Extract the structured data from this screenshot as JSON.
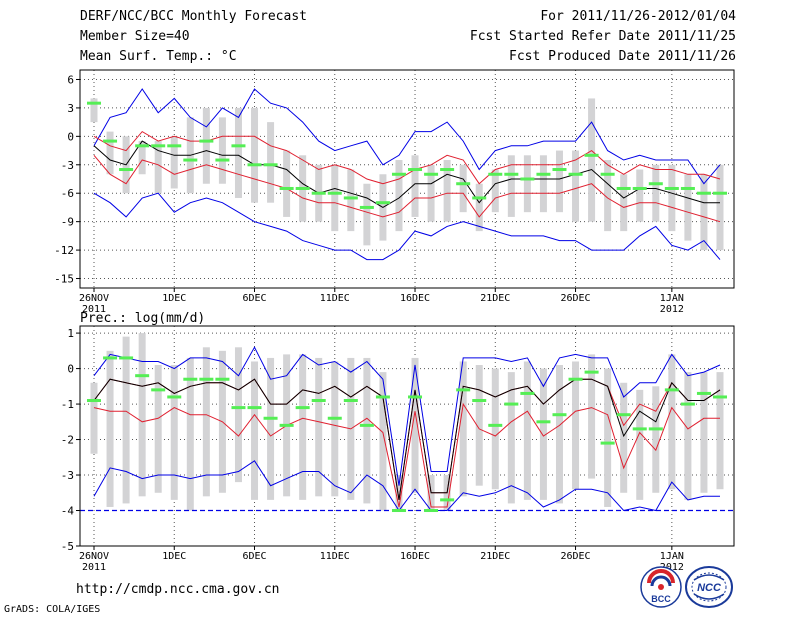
{
  "header": {
    "title": "DERF/NCC/BCC Monthly Forecast",
    "member_size": "Member Size=40",
    "variable": "Mean Surf. Temp.: °C",
    "period": "For 2011/11/26-2012/01/04",
    "started": "Fcst Started Refer Date 2011/11/25",
    "produced": "Fcst Produced Date 2011/11/26"
  },
  "footer": {
    "url": "http://cmdp.ncc.cma.gov.cn",
    "grads": "GrADS: COLA/IGES",
    "logo_bcc": "BCC",
    "logo_ncc": "NCC"
  },
  "colors": {
    "box": "#d3d3d5",
    "median": "#55ee55",
    "mean": "#000000",
    "stdev": "#e02030",
    "extreme": "#0000e6",
    "grid": "#555555"
  },
  "chart_data": [
    {
      "type": "line",
      "title": "Mean Surf. Temp.: °C",
      "xlabel": "",
      "ylabel": "",
      "ylim": [
        -16,
        7
      ],
      "yticks": [
        6,
        3,
        0,
        -3,
        -6,
        -9,
        -12,
        -15
      ],
      "x_start": "2011-11-26",
      "days": 40,
      "xtick_labels": [
        {
          "day": 0,
          "label": "26NOV",
          "year": "2011"
        },
        {
          "day": 5,
          "label": "1DEC"
        },
        {
          "day": 10,
          "label": "6DEC"
        },
        {
          "day": 15,
          "label": "11DEC"
        },
        {
          "day": 20,
          "label": "16DEC"
        },
        {
          "day": 25,
          "label": "21DEC"
        },
        {
          "day": 30,
          "label": "26DEC"
        },
        {
          "day": 36,
          "label": "1JAN",
          "year": "2012"
        }
      ],
      "series": [
        {
          "name": "max",
          "values": [
            -1,
            2,
            2.5,
            5,
            2.5,
            4,
            2,
            1,
            3,
            2,
            5,
            3.5,
            3,
            1.5,
            -0.5,
            -1.5,
            -1,
            -0.5,
            -3,
            -2,
            0.5,
            0.5,
            1.5,
            -0.5,
            -3.5,
            -1.5,
            -1,
            -1,
            -0.5,
            -0.5,
            -0.5,
            1.5,
            -1.5,
            -2.5,
            -2,
            -2.5,
            -2.5,
            -2.5,
            -5,
            -3
          ]
        },
        {
          "name": "plus_std",
          "values": [
            0,
            -1,
            -1.5,
            0.5,
            -0.5,
            0,
            -0.5,
            -0.5,
            0,
            0,
            0,
            -1,
            -1.5,
            -2.5,
            -3.5,
            -3,
            -3.5,
            -4.5,
            -5,
            -4.5,
            -3.5,
            -3,
            -2,
            -2.5,
            -5,
            -3.5,
            -3,
            -3,
            -3,
            -3,
            -2.5,
            -1.5,
            -3,
            -4,
            -3,
            -3.5,
            -3.5,
            -4,
            -4,
            -4.5
          ]
        },
        {
          "name": "mean",
          "values": [
            -1,
            -2.5,
            -3,
            -0.5,
            -1.5,
            -2,
            -2,
            -1.5,
            -2,
            -2,
            -3,
            -3,
            -3.5,
            -5,
            -6,
            -5.5,
            -6,
            -6.5,
            -7.5,
            -6.5,
            -5,
            -5,
            -4,
            -4.5,
            -7,
            -5,
            -4.5,
            -4.5,
            -4.5,
            -4.5,
            -4,
            -3.5,
            -5,
            -6.5,
            -5.5,
            -5.5,
            -6,
            -6.5,
            -7,
            -7
          ]
        },
        {
          "name": "minus_std",
          "values": [
            -2,
            -4,
            -5,
            -2.5,
            -3,
            -4,
            -3.5,
            -3,
            -3.5,
            -4,
            -4.5,
            -5,
            -5.5,
            -6.5,
            -7,
            -7,
            -7.5,
            -8,
            -8.5,
            -8,
            -6.5,
            -6.5,
            -6,
            -6,
            -8.5,
            -6.5,
            -6,
            -6,
            -6,
            -6,
            -5.5,
            -5,
            -6.5,
            -7.5,
            -7,
            -7,
            -7.5,
            -8,
            -8.5,
            -9
          ]
        },
        {
          "name": "min",
          "values": [
            -6,
            -7,
            -8.5,
            -6.5,
            -6,
            -8,
            -7,
            -6.5,
            -7,
            -8,
            -9,
            -9.5,
            -10,
            -11,
            -11.5,
            -12,
            -12,
            -13,
            -13,
            -12,
            -10,
            -10.5,
            -9.5,
            -9,
            -9.5,
            -10,
            -10.5,
            -10.5,
            -10.5,
            -11,
            -11,
            -12,
            -12,
            -12,
            -10.5,
            -9.5,
            -11.5,
            -12,
            -11,
            -13
          ]
        },
        {
          "name": "median",
          "values": [
            3.5,
            -0.5,
            -3.5,
            -1,
            -1,
            -1,
            -2.5,
            -0.5,
            -2.5,
            -1,
            -3,
            -3,
            -5.5,
            -5.5,
            -6,
            -6,
            -6.5,
            -7.5,
            -7,
            -4,
            -3.5,
            -4,
            -3.5,
            -5,
            -6.5,
            -4,
            -4,
            -4.5,
            -4,
            -3.5,
            -4,
            -2,
            -4,
            -5.5,
            -5.5,
            -5,
            -5.5,
            -5.5,
            -6,
            -6
          ]
        },
        {
          "name": "box_high",
          "values": [
            4,
            0.5,
            0,
            -0.5,
            -0.5,
            0,
            2,
            3,
            2,
            3,
            3,
            1.5,
            -1.5,
            -2,
            -3,
            -3,
            -3.5,
            -5,
            -4,
            -2.5,
            -2,
            -3,
            -2.5,
            -3,
            -5,
            -3.5,
            -2,
            -2,
            -2,
            -1.5,
            -1.5,
            4,
            -2.5,
            -4,
            -3.5,
            -3,
            -3,
            -4,
            -4,
            -3
          ]
        },
        {
          "name": "box_low",
          "values": [
            1.5,
            -4,
            -6,
            -4,
            -6,
            -5.5,
            -6,
            -5,
            -5,
            -6.5,
            -7,
            -7,
            -8.5,
            -9,
            -9,
            -10,
            -10,
            -11.5,
            -11,
            -10,
            -8.5,
            -9,
            -9,
            -8,
            -10,
            -8,
            -8.5,
            -8,
            -8,
            -8,
            -9,
            -9,
            -10,
            -10,
            -9,
            -9,
            -10,
            -11,
            -12,
            -12
          ]
        }
      ]
    },
    {
      "type": "line",
      "title": "Prec.: log(mm/d)",
      "xlabel": "",
      "ylabel": "",
      "ylim": [
        -5,
        1.2
      ],
      "yticks": [
        1,
        0,
        -1,
        -2,
        -3,
        -4,
        -5
      ],
      "x_start": "2011-11-26",
      "days": 40,
      "baseline": -4,
      "xtick_labels": [
        {
          "day": 0,
          "label": "26NOV",
          "year": "2011"
        },
        {
          "day": 5,
          "label": "1DEC"
        },
        {
          "day": 10,
          "label": "6DEC"
        },
        {
          "day": 15,
          "label": "11DEC"
        },
        {
          "day": 20,
          "label": "16DEC"
        },
        {
          "day": 25,
          "label": "21DEC"
        },
        {
          "day": 30,
          "label": "26DEC"
        },
        {
          "day": 36,
          "label": "1JAN",
          "year": "2012"
        }
      ],
      "series": [
        {
          "name": "max",
          "values": [
            -0.2,
            0.4,
            0.3,
            0.2,
            0.2,
            0,
            0.3,
            0.3,
            0.2,
            -0.2,
            0.6,
            -0.3,
            -0.2,
            0.4,
            0.1,
            0.2,
            -0.1,
            0.2,
            -0.3,
            -3.3,
            0.1,
            -2.9,
            -2.9,
            0.3,
            0.3,
            0.3,
            0.2,
            0.3,
            -0.5,
            0.3,
            0.4,
            0.3,
            0.3,
            -0.8,
            -0.4,
            -0.4,
            0.4,
            -0.2,
            -0.1,
            0.1
          ]
        },
        {
          "name": "plus_std",
          "values": [
            -0.9,
            -0.3,
            -0.4,
            -0.5,
            -0.4,
            -0.7,
            -0.5,
            -0.4,
            -0.4,
            -0.6,
            -0.3,
            -1,
            -1,
            -0.6,
            -0.7,
            -0.5,
            -0.8,
            -0.5,
            -0.8,
            -3.7,
            -0.6,
            -3.5,
            -3.5,
            -0.5,
            -0.6,
            -0.8,
            -0.6,
            -0.5,
            -1,
            -0.6,
            -0.3,
            -0.3,
            -0.5,
            -1.6,
            -1,
            -1.2,
            -0.4,
            -0.9,
            -0.9,
            -0.6
          ]
        },
        {
          "name": "mean",
          "values": [
            -0.9,
            -0.3,
            -0.4,
            -0.5,
            -0.4,
            -0.7,
            -0.5,
            -0.4,
            -0.4,
            -0.6,
            -0.3,
            -1,
            -1,
            -0.6,
            -0.7,
            -0.5,
            -0.8,
            -0.5,
            -0.8,
            -3.7,
            -0.6,
            -3.5,
            -3.5,
            -0.5,
            -0.6,
            -0.8,
            -0.6,
            -0.5,
            -1,
            -0.6,
            -0.3,
            -0.3,
            -0.5,
            -1.9,
            -1.2,
            -1.5,
            -0.4,
            -0.9,
            -0.9,
            -0.6
          ]
        },
        {
          "name": "minus_std",
          "values": [
            -1.1,
            -1.2,
            -1.2,
            -1.5,
            -1.4,
            -1.1,
            -1.3,
            -1.3,
            -1.5,
            -1.9,
            -1.3,
            -1.9,
            -1.6,
            -1.4,
            -1.5,
            -1.6,
            -1.7,
            -1.4,
            -1.8,
            -3.9,
            -1.2,
            -3.9,
            -3.9,
            -1,
            -1.7,
            -1.9,
            -1.5,
            -1.2,
            -1.9,
            -1.6,
            -1.2,
            -1.1,
            -1.3,
            -2.8,
            -1.8,
            -2.3,
            -1.1,
            -1.7,
            -1.4,
            -1.4
          ]
        },
        {
          "name": "min",
          "values": [
            -3.6,
            -2.8,
            -2.9,
            -3.1,
            -3,
            -3,
            -3.1,
            -3,
            -3,
            -2.9,
            -2.6,
            -3.3,
            -3.1,
            -2.9,
            -2.9,
            -3.3,
            -3.5,
            -3,
            -3.3,
            -4,
            -3.4,
            -4,
            -4,
            -3.5,
            -3.6,
            -3.5,
            -3.3,
            -3.5,
            -3.9,
            -3.7,
            -3.4,
            -3.4,
            -3.5,
            -4,
            -3.9,
            -4,
            -3.2,
            -3.7,
            -3.6,
            -3.6
          ]
        },
        {
          "name": "median",
          "values": [
            -0.9,
            0.3,
            0.3,
            -0.2,
            -0.6,
            -0.8,
            -0.3,
            -0.3,
            -0.3,
            -1.1,
            -1.1,
            -1.4,
            -1.6,
            -1.1,
            -0.9,
            -1.4,
            -0.9,
            -1.6,
            -0.8,
            -4,
            -0.8,
            -4,
            -3.7,
            -0.6,
            -0.9,
            -1.6,
            -1,
            -0.7,
            -1.5,
            -1.3,
            -0.3,
            -0.1,
            -2.1,
            -1.3,
            -1.7,
            -1.7,
            -0.6,
            -1,
            -0.7,
            -0.8
          ]
        },
        {
          "name": "box_high",
          "values": [
            -0.4,
            0.5,
            0.9,
            1,
            0.1,
            0.1,
            0.3,
            0.6,
            0.5,
            0.6,
            0.2,
            0.3,
            0.4,
            0.4,
            0.3,
            0.2,
            0.3,
            0.3,
            -0.1,
            -3,
            0.3,
            -3,
            -3,
            0.2,
            0.1,
            0,
            -0.1,
            0.2,
            0,
            0.1,
            0.2,
            0.4,
            0,
            -0.4,
            -0.6,
            -0.5,
            0.4,
            -0.1,
            -0.1,
            -0.1
          ]
        },
        {
          "name": "box_low",
          "values": [
            -2.4,
            -3.9,
            -3.8,
            -3.6,
            -3.5,
            -3.7,
            -4,
            -3.6,
            -3.5,
            -3.2,
            -3.7,
            -3.7,
            -3.6,
            -3.7,
            -3.6,
            -3.6,
            -3.7,
            -3.8,
            -4,
            -4,
            -3.5,
            -4,
            -4,
            -3.6,
            -3.3,
            -3.4,
            -3.8,
            -3.7,
            -3.7,
            -3.8,
            -3.4,
            -3.1,
            -3.9,
            -3.5,
            -3.7,
            -3.5,
            -3.4,
            -3.7,
            -3.5,
            -3.4
          ]
        }
      ]
    }
  ]
}
